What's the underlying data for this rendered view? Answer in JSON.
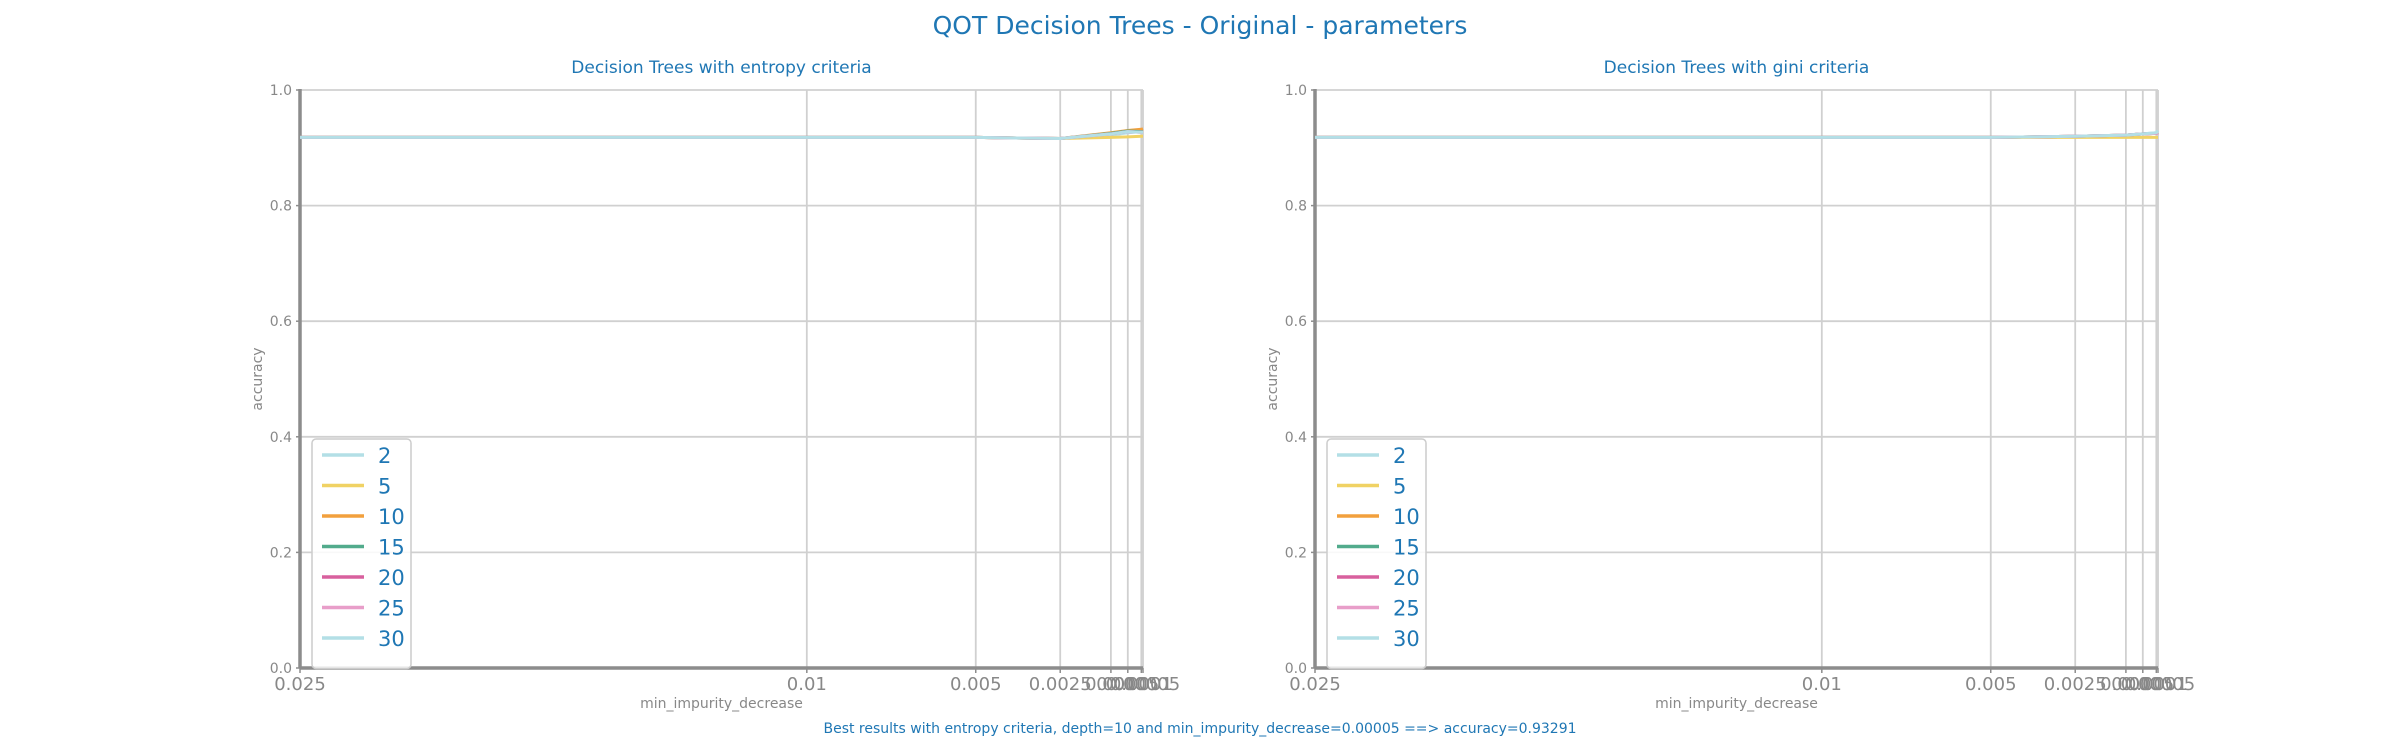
{
  "figure_title": "QOT Decision Trees - Original - parameters",
  "footer_text": "Best results with entropy criteria, depth=10 and min_impurity_decrease=0.00005 ==> accuracy=0.93291",
  "colors": {
    "text": "#1f77b4",
    "axis": "#8c8c8c",
    "grid": "#d0d0d0",
    "legend_border": "#cccccc"
  },
  "chart_data": [
    {
      "type": "line",
      "title": "Decision Trees with entropy criteria",
      "xlabel": "min_impurity_decrease",
      "ylabel": "accuracy",
      "ylim": [
        0,
        1
      ],
      "x_scale": "linear, reversed",
      "grid": true,
      "legend_position": "lower-left",
      "x": [
        0.025,
        0.01,
        0.005,
        0.0025,
        0.001,
        0.0005,
        0.0001,
        5e-05
      ],
      "xticklabels": [
        "0.025",
        "0.01",
        "0.005",
        "0.0025",
        "0.001",
        "0.0005",
        "0.0001",
        "0.00005"
      ],
      "yticks": [
        0,
        0.2,
        0.4,
        0.6,
        0.8,
        1.0
      ],
      "yticklabels": [
        "0.0",
        "0.2",
        "0.4",
        "0.6",
        "0.8",
        "1.0"
      ],
      "series": [
        {
          "name": "2",
          "color": "#b3dfe6",
          "values": [
            0.918,
            0.918,
            0.918,
            0.916,
            0.922,
            0.926,
            0.928,
            0.928
          ]
        },
        {
          "name": "5",
          "color": "#f0d264",
          "values": [
            0.918,
            0.918,
            0.918,
            0.916,
            0.918,
            0.919,
            0.92,
            0.92
          ]
        },
        {
          "name": "10",
          "color": "#f2a03d",
          "values": [
            0.918,
            0.918,
            0.918,
            0.916,
            0.926,
            0.93,
            0.932,
            0.93291
          ]
        },
        {
          "name": "15",
          "color": "#52ab8c",
          "values": [
            0.918,
            0.918,
            0.918,
            0.916,
            0.925,
            0.929,
            0.928,
            0.928
          ]
        },
        {
          "name": "20",
          "color": "#d8609e",
          "values": [
            0.918,
            0.918,
            0.918,
            0.916,
            0.924,
            0.928,
            0.927,
            0.927
          ]
        },
        {
          "name": "25",
          "color": "#e89ec9",
          "values": [
            0.918,
            0.918,
            0.918,
            0.916,
            0.924,
            0.928,
            0.927,
            0.927
          ]
        },
        {
          "name": "30",
          "color": "#b3dfe6",
          "values": [
            0.918,
            0.918,
            0.918,
            0.916,
            0.924,
            0.928,
            0.927,
            0.927
          ]
        }
      ]
    },
    {
      "type": "line",
      "title": "Decision Trees with gini criteria",
      "xlabel": "min_impurity_decrease",
      "ylabel": "accuracy",
      "ylim": [
        0,
        1
      ],
      "x_scale": "linear, reversed",
      "grid": true,
      "legend_position": "lower-left",
      "x": [
        0.025,
        0.01,
        0.005,
        0.0025,
        0.001,
        0.0005,
        0.0001,
        5e-05
      ],
      "xticklabels": [
        "0.025",
        "0.01",
        "0.005",
        "0.0025",
        "0.001",
        "0.0005",
        "0.0001",
        "0.00005"
      ],
      "yticks": [
        0,
        0.2,
        0.4,
        0.6,
        0.8,
        1.0
      ],
      "yticklabels": [
        "0.0",
        "0.2",
        "0.4",
        "0.6",
        "0.8",
        "1.0"
      ],
      "series": [
        {
          "name": "2",
          "color": "#b3dfe6",
          "values": [
            0.918,
            0.918,
            0.918,
            0.92,
            0.922,
            0.924,
            0.926,
            0.928
          ]
        },
        {
          "name": "5",
          "color": "#f0d264",
          "values": [
            0.918,
            0.918,
            0.918,
            0.918,
            0.918,
            0.918,
            0.918,
            0.918
          ]
        },
        {
          "name": "10",
          "color": "#f2a03d",
          "values": [
            0.918,
            0.918,
            0.918,
            0.92,
            0.922,
            0.924,
            0.925,
            0.926
          ]
        },
        {
          "name": "15",
          "color": "#52ab8c",
          "values": [
            0.918,
            0.918,
            0.918,
            0.92,
            0.922,
            0.924,
            0.925,
            0.926
          ]
        },
        {
          "name": "20",
          "color": "#d8609e",
          "values": [
            0.918,
            0.918,
            0.918,
            0.92,
            0.922,
            0.924,
            0.925,
            0.926
          ]
        },
        {
          "name": "25",
          "color": "#e89ec9",
          "values": [
            0.918,
            0.918,
            0.918,
            0.92,
            0.922,
            0.924,
            0.925,
            0.926
          ]
        },
        {
          "name": "30",
          "color": "#b3dfe6",
          "values": [
            0.918,
            0.918,
            0.918,
            0.92,
            0.922,
            0.924,
            0.926,
            0.93
          ]
        }
      ]
    }
  ]
}
